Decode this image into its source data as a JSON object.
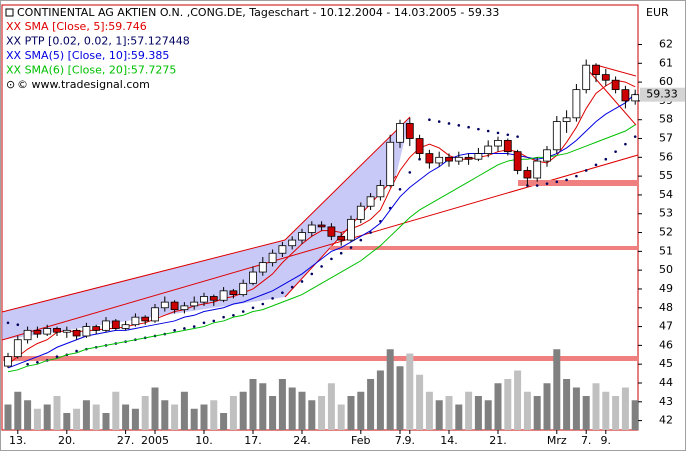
{
  "chart_data": {
    "type": "candlestick",
    "title": "CONTINENTAL AG AKTIEN O.N. ,CONG.DE, Tageschart - 10.12.2004 - 14.03.2005 - 59.33",
    "copyright": "© www.tradesignal.com",
    "y_unit": "EUR",
    "last_price_label": {
      "value": 59.33,
      "label": "59.33"
    },
    "ylim": [
      41.5,
      64.1
    ],
    "yticks": [
      42,
      43,
      44,
      45,
      46,
      47,
      48,
      49,
      50,
      51,
      52,
      53,
      54,
      55,
      56,
      57,
      58,
      59,
      60,
      61,
      62
    ],
    "categories": [
      null,
      "13.",
      null,
      null,
      null,
      null,
      "20.",
      null,
      null,
      null,
      null,
      null,
      "27.",
      null,
      null,
      "2005",
      null,
      null,
      null,
      null,
      "10.",
      null,
      null,
      null,
      null,
      "17.",
      null,
      null,
      null,
      null,
      "24.",
      null,
      null,
      null,
      null,
      null,
      "Feb",
      null,
      null,
      null,
      "7.",
      "9.",
      null,
      null,
      null,
      "14.",
      null,
      null,
      null,
      null,
      "21.",
      null,
      null,
      null,
      null,
      null,
      "Mrz",
      null,
      null,
      "7.",
      null,
      "9.",
      null,
      null,
      null
    ],
    "up_color": "#ffffff",
    "down_color": "#cc0000",
    "open": [
      44.9,
      45.4,
      46.3,
      46.8,
      46.6,
      46.9,
      46.7,
      46.8,
      46.5,
      47.0,
      46.8,
      47.3,
      46.9,
      47.1,
      47.5,
      47.3,
      48.0,
      48.3,
      47.9,
      48.1,
      48.3,
      48.6,
      48.4,
      48.9,
      48.7,
      49.3,
      49.9,
      50.4,
      50.9,
      51.3,
      51.6,
      52.0,
      52.4,
      52.3,
      51.8,
      51.6,
      52.7,
      53.4,
      53.9,
      54.5,
      56.8,
      57.8,
      57.0,
      56.2,
      55.7,
      56.0,
      55.8,
      56.0,
      55.9,
      56.2,
      56.6,
      56.9,
      56.3,
      55.3,
      54.9,
      55.8,
      56.4,
      57.9,
      58.1,
      59.6,
      60.9,
      60.4,
      60.1,
      59.6,
      59.0
    ],
    "high": [
      45.6,
      46.5,
      47.0,
      47.0,
      47.1,
      47.0,
      47.0,
      46.9,
      47.2,
      47.1,
      47.5,
      47.4,
      47.3,
      47.7,
      47.6,
      48.2,
      48.6,
      48.4,
      48.3,
      48.6,
      48.8,
      48.7,
      49.1,
      49.0,
      49.5,
      50.2,
      50.7,
      51.1,
      51.5,
      51.8,
      52.2,
      52.6,
      52.6,
      52.5,
      52.0,
      52.9,
      53.6,
      54.1,
      54.8,
      57.2,
      58.0,
      58.1,
      57.2,
      56.4,
      56.3,
      56.2,
      56.3,
      56.2,
      56.5,
      56.9,
      57.1,
      57.0,
      56.4,
      55.5,
      56.0,
      56.6,
      58.2,
      58.5,
      59.9,
      61.2,
      61.0,
      60.7,
      60.3,
      59.8,
      59.6
    ],
    "low": [
      44.8,
      45.3,
      46.1,
      46.4,
      46.5,
      46.5,
      46.4,
      46.3,
      46.4,
      46.6,
      46.7,
      46.8,
      46.8,
      47.0,
      47.1,
      47.2,
      47.8,
      47.7,
      47.7,
      47.9,
      48.1,
      48.1,
      48.3,
      48.5,
      48.6,
      49.2,
      49.7,
      50.2,
      50.7,
      51.1,
      51.4,
      51.8,
      52.1,
      51.6,
      51.3,
      51.5,
      52.5,
      53.2,
      53.7,
      54.4,
      56.5,
      56.6,
      55.9,
      55.4,
      55.5,
      55.5,
      55.6,
      55.6,
      55.8,
      56.0,
      56.3,
      56.1,
      55.1,
      54.5,
      54.7,
      55.5,
      56.2,
      57.3,
      57.9,
      59.4,
      60.0,
      59.8,
      59.4,
      58.6,
      58.8
    ],
    "close": [
      45.4,
      46.3,
      46.8,
      46.6,
      46.9,
      46.7,
      46.8,
      46.5,
      47.0,
      46.8,
      47.3,
      46.9,
      47.1,
      47.5,
      47.3,
      48.0,
      48.3,
      47.9,
      48.1,
      48.3,
      48.6,
      48.4,
      48.9,
      48.7,
      49.3,
      49.9,
      50.4,
      50.9,
      51.3,
      51.6,
      52.0,
      52.4,
      52.3,
      51.8,
      51.6,
      52.7,
      53.4,
      53.9,
      54.5,
      56.8,
      57.8,
      57.0,
      56.2,
      55.7,
      56.0,
      55.8,
      56.0,
      55.9,
      56.2,
      56.6,
      56.9,
      56.3,
      55.3,
      54.9,
      55.8,
      56.4,
      57.9,
      58.1,
      59.6,
      60.9,
      60.4,
      60.1,
      59.6,
      59.0,
      59.33
    ],
    "volume": [
      30,
      45,
      35,
      25,
      30,
      40,
      20,
      25,
      35,
      30,
      20,
      45,
      30,
      25,
      40,
      50,
      35,
      30,
      45,
      25,
      30,
      35,
      20,
      40,
      45,
      60,
      55,
      40,
      60,
      50,
      45,
      35,
      40,
      55,
      30,
      40,
      45,
      60,
      70,
      95,
      75,
      90,
      65,
      45,
      35,
      40,
      30,
      45,
      40,
      35,
      55,
      60,
      70,
      45,
      40,
      55,
      95,
      60,
      50,
      40,
      55,
      45,
      40,
      50,
      35
    ],
    "volume_lim": [
      0,
      500
    ],
    "volume_up_color": "#808080",
    "volume_down_color": "#c0c0c0",
    "series": [
      {
        "name": "XX SMA [Close, 5]:59.746",
        "color": "#e00000",
        "style": "line",
        "values": [
          45.0,
          45.4,
          45.8,
          46.1,
          46.3,
          46.7,
          46.8,
          46.7,
          46.8,
          46.8,
          46.9,
          46.9,
          47.0,
          47.1,
          47.2,
          47.4,
          47.6,
          47.8,
          47.9,
          48.1,
          48.2,
          48.3,
          48.5,
          48.6,
          48.8,
          49.0,
          49.4,
          49.8,
          50.4,
          50.9,
          51.4,
          51.8,
          52.1,
          52.1,
          52.0,
          52.2,
          52.4,
          52.7,
          53.2,
          54.3,
          55.3,
          56.0,
          56.5,
          56.7,
          56.5,
          56.1,
          55.9,
          55.9,
          56.0,
          56.1,
          56.3,
          56.4,
          56.3,
          56.0,
          55.8,
          55.7,
          56.1,
          56.8,
          57.6,
          58.6,
          59.4,
          59.8,
          60.1,
          60.0,
          59.75
        ]
      },
      {
        "name": "XX PTP [0.02, 0.02, 1]:57.127448",
        "color": "#000060",
        "style": "dots",
        "values": [
          47.2,
          47.1,
          45.0,
          45.1,
          45.2,
          45.4,
          45.5,
          45.7,
          45.8,
          45.9,
          46.0,
          46.1,
          46.2,
          46.3,
          46.4,
          46.5,
          46.6,
          46.8,
          46.9,
          47.0,
          47.2,
          47.3,
          47.5,
          47.6,
          47.8,
          48.0,
          48.2,
          48.5,
          48.8,
          49.1,
          49.4,
          49.8,
          50.2,
          50.6,
          50.9,
          51.2,
          51.6,
          52.0,
          52.6,
          53.3,
          54.3,
          55.2,
          55.9,
          58.0,
          57.9,
          57.8,
          57.7,
          57.6,
          57.5,
          57.4,
          57.3,
          57.2,
          57.1,
          54.5,
          54.5,
          54.6,
          54.7,
          54.8,
          55.0,
          55.3,
          55.6,
          55.9,
          56.3,
          56.7,
          57.1
        ]
      },
      {
        "name": "XX SMA(5) [Close, 10]:59.385",
        "color": "#0000e0",
        "style": "line",
        "values": [
          44.8,
          45.0,
          45.2,
          45.4,
          45.6,
          45.9,
          46.1,
          46.3,
          46.5,
          46.6,
          46.7,
          46.8,
          46.8,
          46.9,
          47.0,
          47.1,
          47.2,
          47.3,
          47.5,
          47.6,
          47.8,
          47.9,
          48.0,
          48.2,
          48.3,
          48.5,
          48.7,
          48.9,
          49.2,
          49.5,
          49.8,
          50.2,
          50.6,
          51.0,
          51.2,
          51.5,
          51.8,
          52.1,
          52.5,
          53.2,
          53.9,
          54.4,
          54.8,
          55.2,
          55.5,
          55.9,
          56.1,
          56.2,
          56.2,
          56.2,
          56.2,
          56.2,
          56.1,
          56.0,
          55.9,
          56.0,
          56.2,
          56.5,
          56.9,
          57.4,
          57.9,
          58.3,
          58.6,
          58.9,
          59.385
        ]
      },
      {
        "name": "XX SMA(6) [Close, 20]:57.7275",
        "color": "#00c000",
        "style": "line",
        "values": [
          44.6,
          44.7,
          44.9,
          45.0,
          45.2,
          45.3,
          45.5,
          45.6,
          45.8,
          45.9,
          46.0,
          46.1,
          46.2,
          46.3,
          46.4,
          46.5,
          46.6,
          46.7,
          46.8,
          46.9,
          47.0,
          47.2,
          47.3,
          47.5,
          47.6,
          47.8,
          47.9,
          48.1,
          48.3,
          48.5,
          48.7,
          49.0,
          49.3,
          49.6,
          49.9,
          50.2,
          50.5,
          50.9,
          51.3,
          51.8,
          52.3,
          52.8,
          53.2,
          53.5,
          53.8,
          54.1,
          54.4,
          54.7,
          55.0,
          55.3,
          55.6,
          55.8,
          55.9,
          55.9,
          56.0,
          56.0,
          56.1,
          56.2,
          56.4,
          56.6,
          56.8,
          57.0,
          57.2,
          57.4,
          57.7275
        ]
      }
    ]
  }
}
